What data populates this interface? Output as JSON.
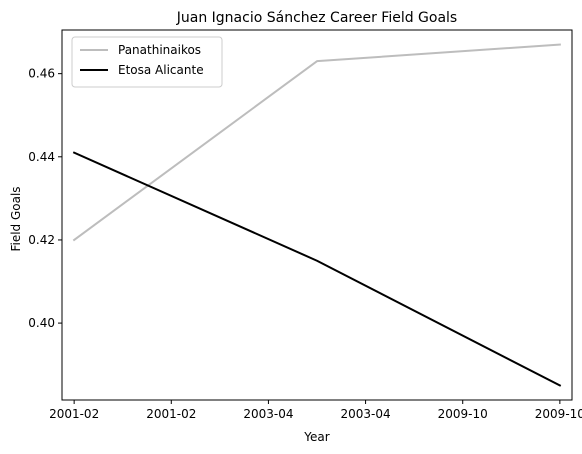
{
  "chart_data": {
    "type": "line",
    "title": "Juan Ignacio Sánchez Career Field Goals",
    "xlabel": "Year",
    "ylabel": "Field Goals",
    "x_tick_labels": [
      "2001-02",
      "2001-02",
      "2003-04",
      "2003-04",
      "2009-10",
      "2009-10"
    ],
    "y_ticks": [
      0.4,
      0.42,
      0.44,
      0.46
    ],
    "y_tick_labels": [
      "0.40",
      "0.42",
      "0.44",
      "0.46"
    ],
    "ylim": [
      0.3815,
      0.4705
    ],
    "xlim": [
      -0.1,
      4.1
    ],
    "grid": false,
    "legend_position": "upper-left",
    "series": [
      {
        "name": "Panathinaikos",
        "color": "#bdbdbd",
        "x_labels": [
          "2001-02",
          "2003-04",
          "2009-10"
        ],
        "x": [
          0,
          2,
          4
        ],
        "values": [
          0.42,
          0.463,
          0.467
        ]
      },
      {
        "name": "Etosa Alicante",
        "color": "#000000",
        "x_labels": [
          "2001-02",
          "2003-04",
          "2009-10"
        ],
        "x": [
          0,
          2,
          4
        ],
        "values": [
          0.441,
          0.415,
          0.385
        ]
      }
    ]
  }
}
